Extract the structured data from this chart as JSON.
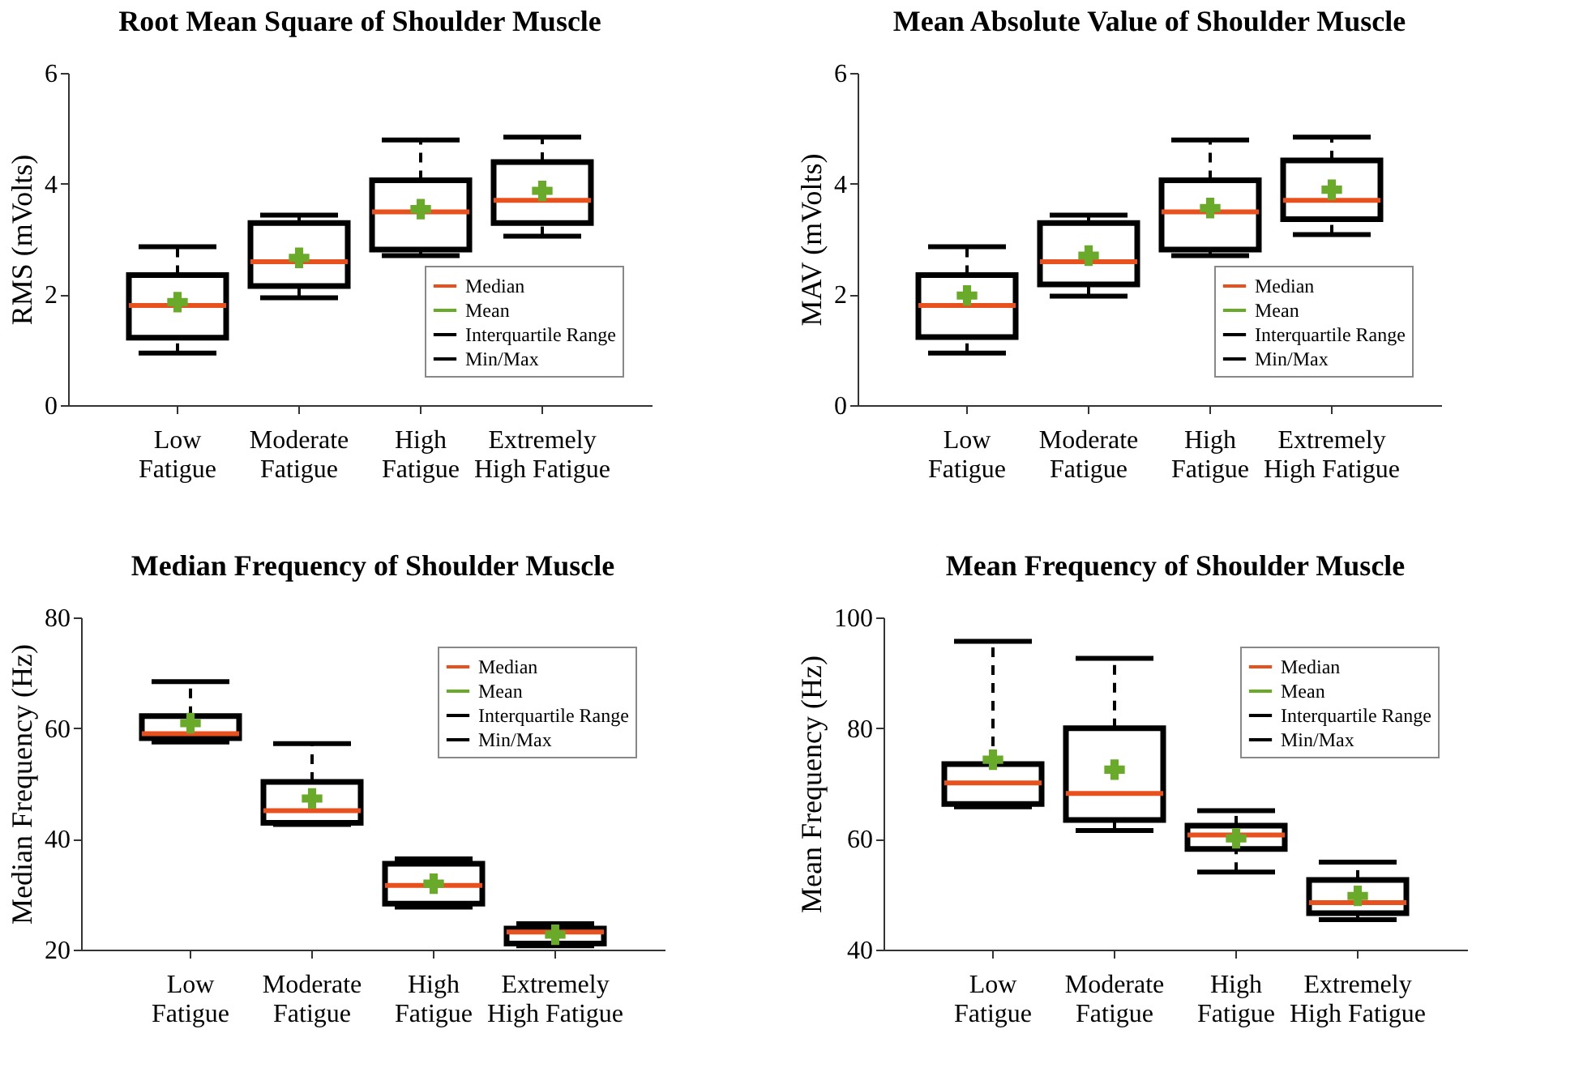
{
  "chart_data": [
    {
      "type": "box",
      "title": "Root Mean Square of Shoulder Muscle",
      "ylabel": "RMS (mVolts)",
      "categories": [
        "Low Fatigue",
        "Moderate Fatigue",
        "High Fatigue",
        "Extremely High Fatigue"
      ],
      "ylim": [
        0,
        6
      ],
      "yticks": [
        0,
        2,
        4,
        6
      ],
      "legend": "bottom right",
      "annotations": [
        "Median",
        "Min/Max"
      ],
      "series": [
        {
          "type": "box",
          "name": "Interquartile Range",
          "color": "#000000",
          "boxes": [
            {
              "low": 0.94,
              "q1": 1.22,
              "median": 1.8,
              "q3": 2.35,
              "high": 2.86
            },
            {
              "low": 1.94,
              "q1": 2.15,
              "median": 2.59,
              "q3": 3.29,
              "high": 3.43
            },
            {
              "low": 2.7,
              "q1": 2.81,
              "median": 3.49,
              "q3": 4.06,
              "high": 4.79
            },
            {
              "low": 3.05,
              "q1": 3.29,
              "median": 3.7,
              "q3": 4.39,
              "high": 4.84
            }
          ]
        },
        {
          "type": "scatter",
          "name": "Mean",
          "color": "#6aaa2a",
          "marker": "cross",
          "x": [
            "Low Fatigue",
            "Moderate Fatigue",
            "High Fatigue",
            "Extremely High Fatigue"
          ],
          "values": [
            1.86,
            2.66,
            3.54,
            3.87
          ]
        }
      ]
    },
    {
      "type": "box",
      "title": "Mean Absolute Value of Shoulder Muscle",
      "ylabel": "MAV (mVolts)",
      "categories": [
        "Low Fatigue",
        "Moderate Fatigue",
        "High Fatigue",
        "Extremely High Fatigue"
      ],
      "ylim": [
        0,
        6
      ],
      "yticks": [
        0,
        2,
        4,
        6
      ],
      "legend": "bottom right",
      "annotations": [
        "Median",
        "Min/Max"
      ],
      "series": [
        {
          "type": "box",
          "name": "Interquartile Range",
          "color": "#000000",
          "boxes": [
            {
              "low": 0.94,
              "q1": 1.23,
              "median": 1.8,
              "q3": 2.35,
              "high": 2.86
            },
            {
              "low": 1.97,
              "q1": 2.18,
              "median": 2.59,
              "q3": 3.29,
              "high": 3.43
            },
            {
              "low": 2.7,
              "q1": 2.81,
              "median": 3.49,
              "q3": 4.06,
              "high": 4.79
            },
            {
              "low": 3.08,
              "q1": 3.36,
              "median": 3.7,
              "q3": 4.42,
              "high": 4.84
            }
          ]
        },
        {
          "type": "scatter",
          "name": "Mean",
          "color": "#6aaa2a",
          "marker": "cross",
          "x": [
            "Low Fatigue",
            "Moderate Fatigue",
            "High Fatigue",
            "Extremely High Fatigue"
          ],
          "values": [
            1.98,
            2.7,
            3.56,
            3.89
          ]
        }
      ]
    },
    {
      "type": "box",
      "title": "Median Frequency of  Shoulder Muscle",
      "ylabel": "Median Frequency (Hz)",
      "categories": [
        "Low Fatigue",
        "Moderate Fatigue",
        "High Fatigue",
        "Extremely High Fatigue"
      ],
      "ylim": [
        20,
        80
      ],
      "yticks": [
        20,
        40,
        60,
        80
      ],
      "legend": "top right",
      "annotations": [
        "Median",
        "Min/Max"
      ],
      "series": [
        {
          "type": "box",
          "name": "Interquartile Range",
          "color": "#000000",
          "boxes": [
            {
              "low": 57.5,
              "q1": 58.2,
              "median": 59.0,
              "q3": 62.2,
              "high": 68.4
            },
            {
              "low": 42.6,
              "q1": 42.9,
              "median": 45.1,
              "q3": 50.3,
              "high": 57.2
            },
            {
              "low": 27.7,
              "q1": 28.3,
              "median": 31.6,
              "q3": 35.5,
              "high": 36.4
            },
            {
              "low": 20.7,
              "q1": 21.1,
              "median": 23.2,
              "q3": 23.8,
              "high": 24.7
            }
          ]
        },
        {
          "type": "scatter",
          "name": "Mean",
          "color": "#6aaa2a",
          "marker": "cross",
          "x": [
            "Low Fatigue",
            "Moderate Fatigue",
            "High Fatigue",
            "Extremely High Fatigue"
          ],
          "values": [
            60.9,
            47.3,
            31.9,
            22.7
          ]
        }
      ]
    },
    {
      "type": "box",
      "title": "Mean Frequency of Shoulder Muscle",
      "ylabel": "Mean Frequency (Hz)",
      "categories": [
        "Low Fatigue",
        "Moderate Fatigue",
        "High Fatigue",
        "Extremely High Fatigue"
      ],
      "ylim": [
        40,
        100
      ],
      "yticks": [
        40,
        60,
        80,
        100
      ],
      "legend": "top right",
      "annotations": [
        "Median",
        "Min/Max"
      ],
      "series": [
        {
          "type": "box",
          "name": "Interquartile Range",
          "color": "#000000",
          "boxes": [
            {
              "low": 65.8,
              "q1": 66.3,
              "median": 70.1,
              "q3": 73.5,
              "high": 95.7
            },
            {
              "low": 61.5,
              "q1": 63.4,
              "median": 68.2,
              "q3": 80.0,
              "high": 92.6
            },
            {
              "low": 54.0,
              "q1": 58.2,
              "median": 60.7,
              "q3": 62.4,
              "high": 65.1
            },
            {
              "low": 45.4,
              "q1": 46.6,
              "median": 48.5,
              "q3": 52.6,
              "high": 55.8
            }
          ]
        },
        {
          "type": "scatter",
          "name": "Mean",
          "color": "#6aaa2a",
          "marker": "cross",
          "x": [
            "Low Fatigue",
            "Moderate Fatigue",
            "High Fatigue",
            "Extremely High Fatigue"
          ],
          "values": [
            74.3,
            72.5,
            60.1,
            49.7
          ]
        }
      ]
    }
  ]
}
